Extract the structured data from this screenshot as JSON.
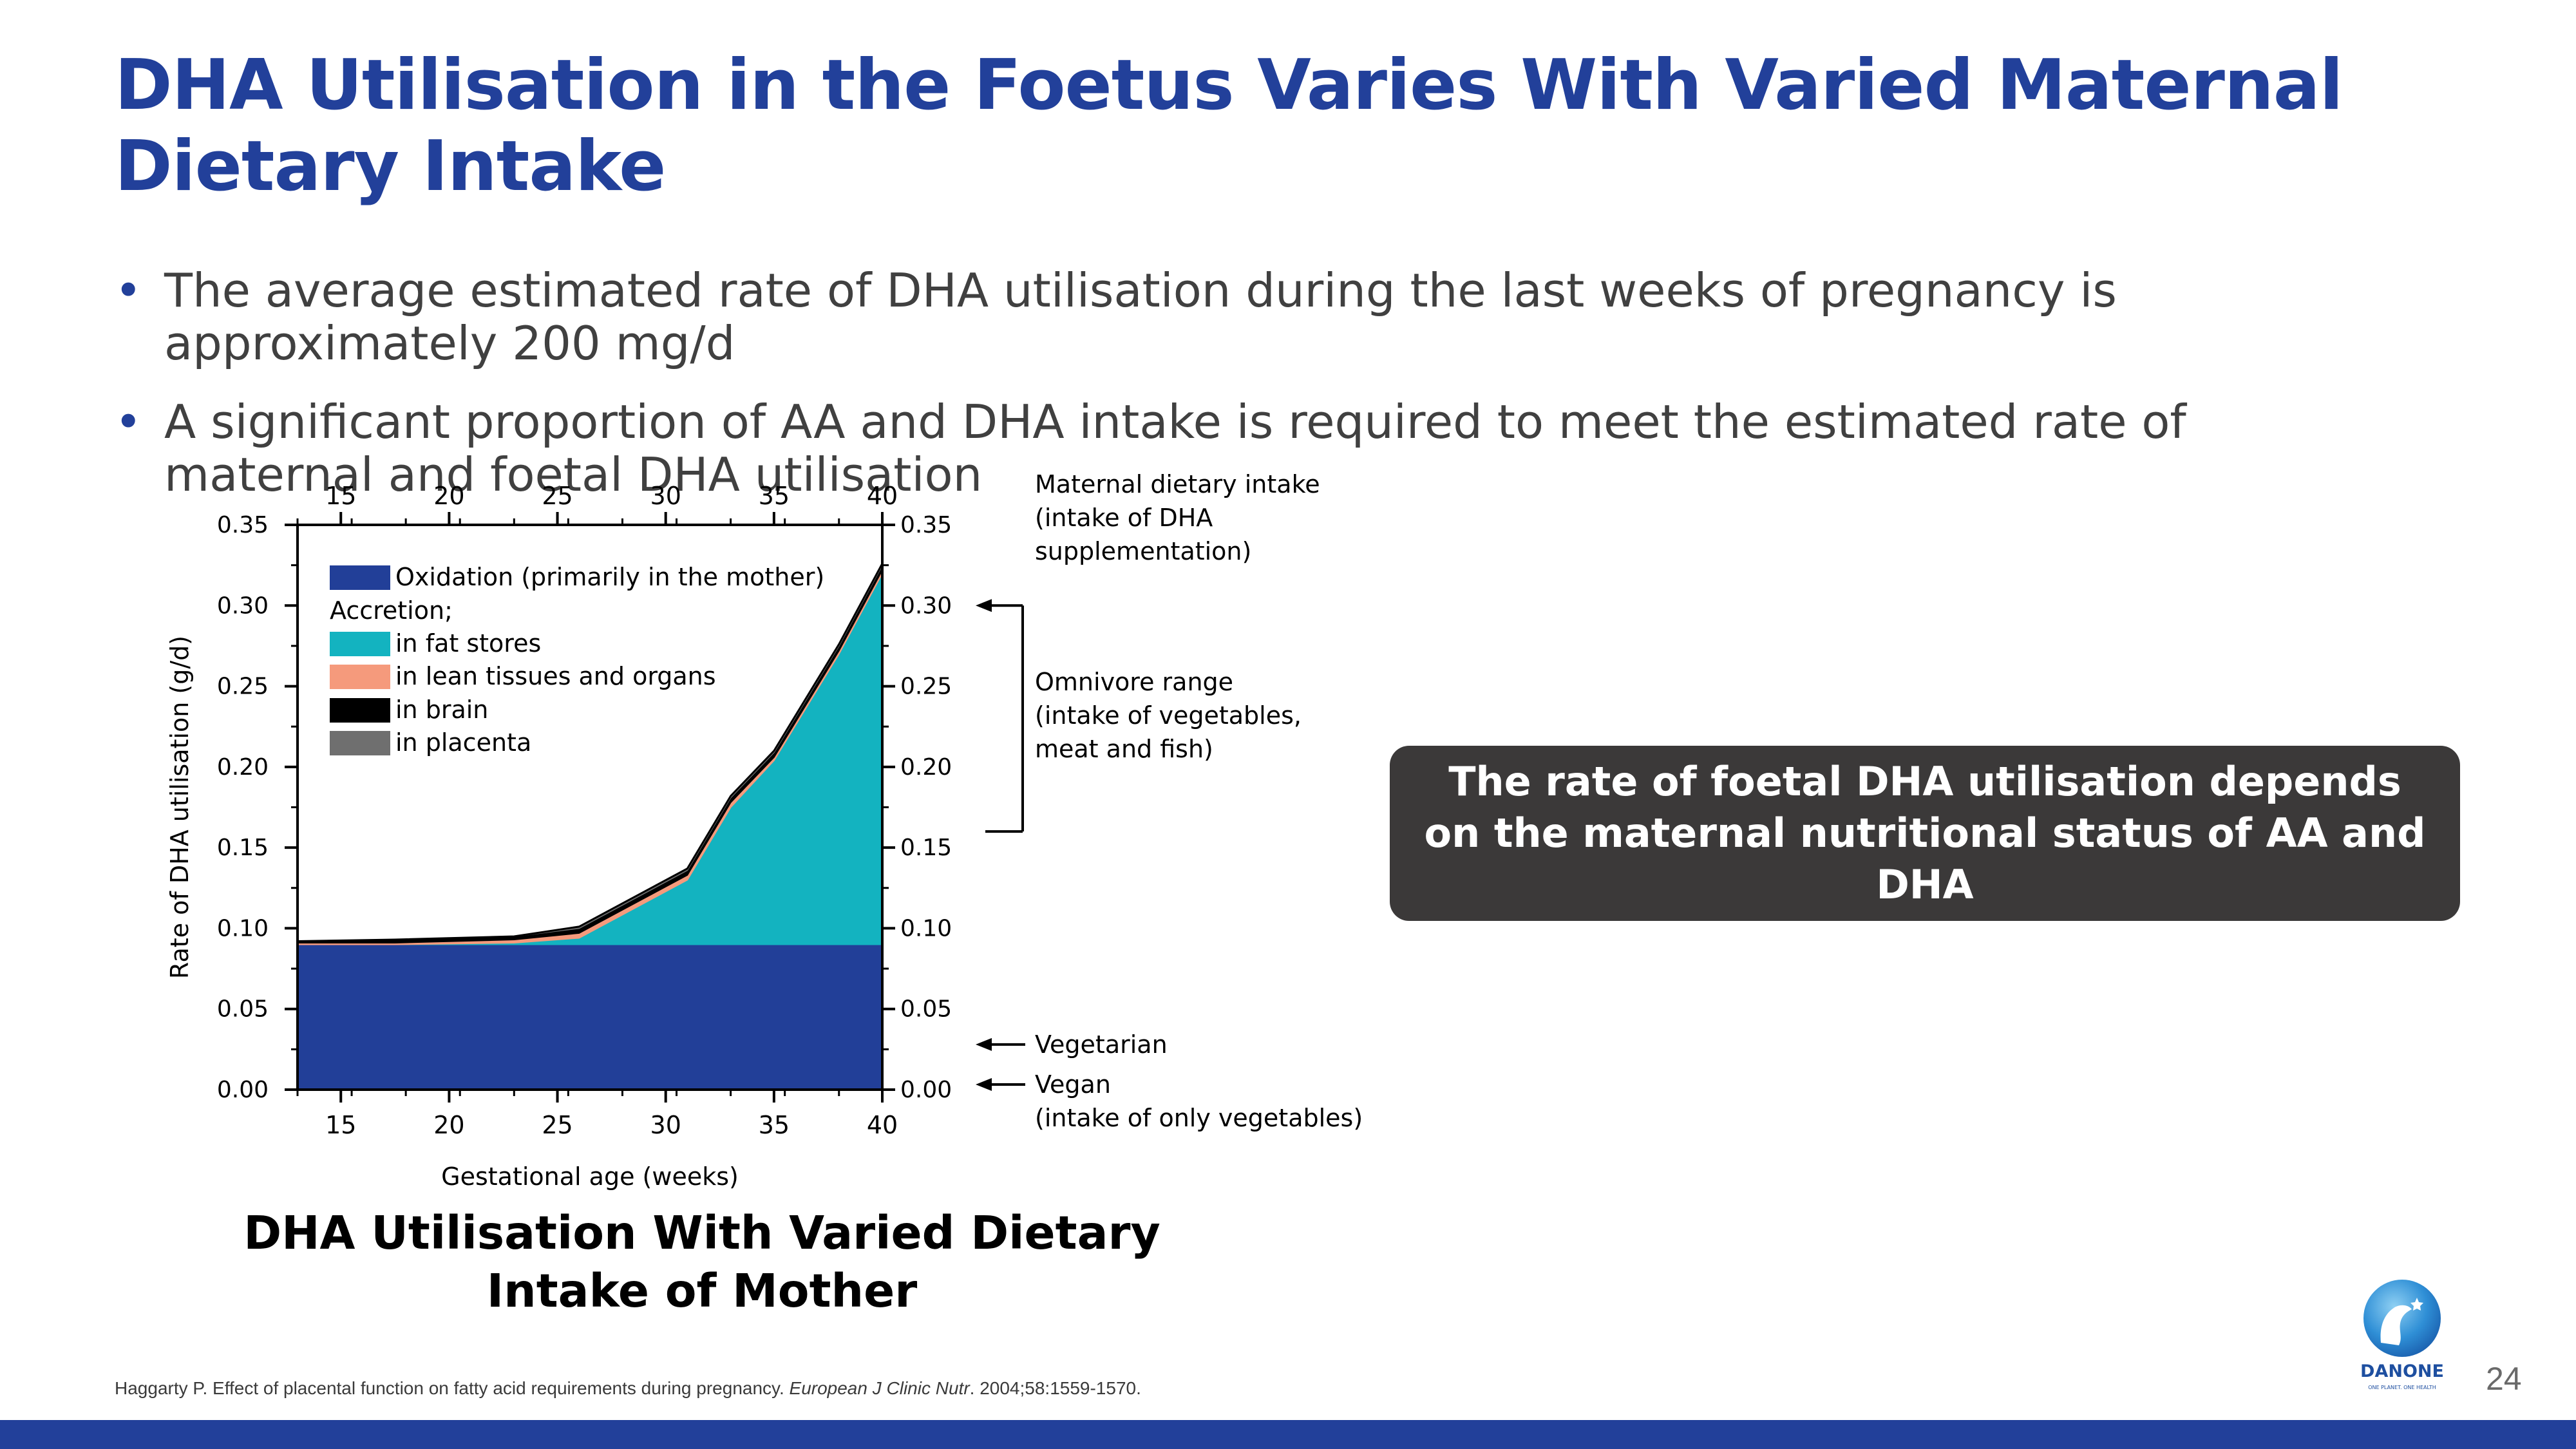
{
  "slide": {
    "title": "DHA Utilisation in the Foetus Varies With Varied Maternal Dietary Intake",
    "bullet_marker": "•",
    "bullets": [
      "The average estimated rate of DHA utilisation during the last weeks of pregnancy is approximately 200 mg/d",
      "A significant proportion of AA and DHA intake is required to meet the estimated rate of maternal and foetal DHA utilisation"
    ],
    "callout": "The rate of foetal DHA utilisation depends on the maternal nutritional status of AA and DHA",
    "chart_caption": "DHA Utilisation With Varied Dietary Intake of Mother",
    "reference": {
      "text": "Haggarty P. Effect of placental function on fatty acid requirements during pregnancy. ",
      "journal": "European J Clinic Nutr",
      "details": ". 2004;58:1559-1570."
    },
    "page_number": "24",
    "logo": {
      "text": "DANONE",
      "tagline": "ONE PLANET. ONE HEALTH"
    },
    "colors": {
      "brand_blue": "#22409a",
      "callout_bg": "#3b3939"
    }
  },
  "chart_data": {
    "type": "area",
    "stacked": true,
    "xlabel": "Gestational age (weeks)",
    "ylabel": "Rate of DHA utilisation (g/d)",
    "xlim": [
      13,
      40
    ],
    "ylim": [
      0,
      0.35
    ],
    "xticks": [
      15,
      20,
      25,
      30,
      35,
      40
    ],
    "yticks": [
      0.0,
      0.05,
      0.1,
      0.15,
      0.2,
      0.25,
      0.3,
      0.35
    ],
    "x": [
      13,
      17.5,
      23,
      26,
      31,
      33,
      35,
      38,
      40
    ],
    "legend_header": "Accretion;",
    "series": [
      {
        "name": "Oxidation (primarily in the mother)",
        "color": "#223f98",
        "values": [
          0.09,
          0.09,
          0.09,
          0.09,
          0.09,
          0.09,
          0.09,
          0.09,
          0.09
        ]
      },
      {
        "name": "in fat stores",
        "color": "#13b3c0",
        "values": [
          0.0,
          0.0,
          0.001,
          0.004,
          0.04,
          0.085,
          0.114,
          0.18,
          0.23
        ]
      },
      {
        "name": "in lean tissues and organs",
        "color": "#f59a7c",
        "values": [
          0.001,
          0.001,
          0.002,
          0.003,
          0.003,
          0.003,
          0.002,
          0.002,
          0.002
        ]
      },
      {
        "name": "in brain",
        "color": "#000000",
        "values": [
          0.001,
          0.002,
          0.002,
          0.003,
          0.003,
          0.003,
          0.003,
          0.003,
          0.003
        ]
      },
      {
        "name": "in placenta",
        "color": "#6f6f6f",
        "values": [
          0.0,
          0.0,
          0.0,
          0.001,
          0.001,
          0.001,
          0.001,
          0.001,
          0.001
        ]
      }
    ],
    "annotations": {
      "top": "Maternal dietary intake\n(intake of DHA\nsupplementation)",
      "omnivore": "Omnivore range\n(intake of vegetables,\nmeat and fish)",
      "omnivore_range": [
        0.16,
        0.3
      ],
      "vegetarian": "Vegetarian",
      "vegetarian_level": 0.028,
      "vegan": "Vegan\n(intake of only vegetables)",
      "vegan_level": 0.002
    }
  }
}
